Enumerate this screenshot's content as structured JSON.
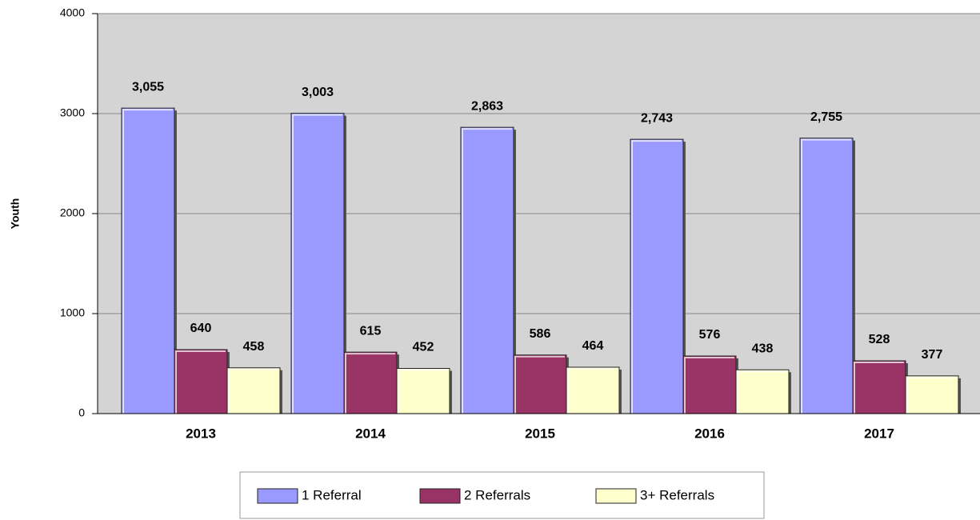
{
  "chart_data": {
    "type": "bar",
    "y_label": "Youth",
    "categories": [
      "2013",
      "2014",
      "2015",
      "2016",
      "2017"
    ],
    "series": [
      {
        "name": "1 Referral",
        "color": "#9999ff",
        "values": [
          3055,
          3003,
          2863,
          2743,
          2755
        ],
        "value_labels": [
          "3,055",
          "3,003",
          "2,863",
          "2,743",
          "2,755"
        ]
      },
      {
        "name": "2 Referrals",
        "color": "#993366",
        "values": [
          640,
          615,
          586,
          576,
          528
        ]
      },
      {
        "name": "3+ Referrals",
        "color": "#ffffcc",
        "values": [
          458,
          452,
          464,
          438,
          377
        ]
      }
    ],
    "ylim": [
      0,
      4000
    ],
    "yticks": [
      0,
      1000,
      2000,
      3000,
      4000
    ],
    "grid": true,
    "legend": "bottom"
  }
}
